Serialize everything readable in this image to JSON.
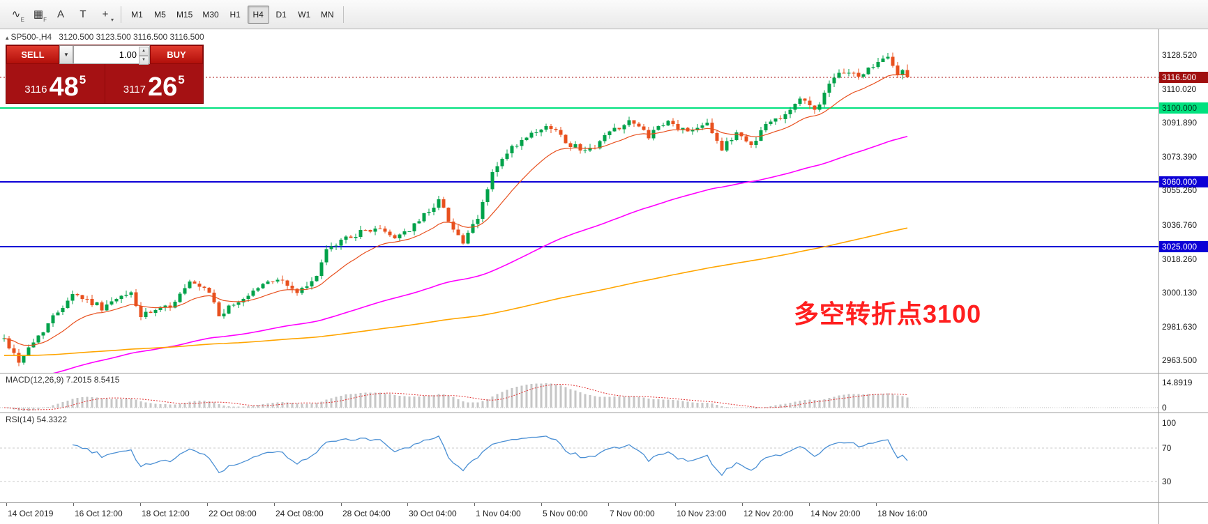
{
  "toolbar": {
    "icons": [
      {
        "name": "indicators-icon",
        "glyph": "∿",
        "sub": "E"
      },
      {
        "name": "grid-icon",
        "glyph": "▦",
        "sub": "F"
      },
      {
        "name": "text-label-icon",
        "glyph": "A",
        "sub": ""
      },
      {
        "name": "text-box-icon",
        "glyph": "T",
        "sub": ""
      },
      {
        "name": "crosshair-icon",
        "glyph": "+",
        "sub": "▾"
      }
    ],
    "timeframes": [
      "M1",
      "M5",
      "M15",
      "M30",
      "H1",
      "H4",
      "D1",
      "W1",
      "MN"
    ],
    "active_timeframe": "H4"
  },
  "chart": {
    "symbol_marker": "▴",
    "symbol_tf": "SP500-,H4",
    "ohlc": "3120.500 3123.500 3116.500 3116.500",
    "annotation": "多空转折点3100",
    "annotation_color": "#ff1f1f"
  },
  "trade_panel": {
    "sell_label": "SELL",
    "buy_label": "BUY",
    "volume": "1.00",
    "bid_prefix": "3116",
    "bid_main": "48",
    "bid_sup": "5",
    "ask_prefix": "3117",
    "ask_main": "26",
    "ask_sup": "5"
  },
  "price_axis": {
    "labels": [
      {
        "text": "3128.520",
        "price": 3128.52,
        "style": "plain"
      },
      {
        "text": "3116.500",
        "price": 3116.5,
        "style": "bid"
      },
      {
        "text": "3110.020",
        "price": 3110.02,
        "style": "plain"
      },
      {
        "text": "3100.000",
        "price": 3100.0,
        "style": "green"
      },
      {
        "text": "3091.890",
        "price": 3091.89,
        "style": "plain"
      },
      {
        "text": "3073.390",
        "price": 3073.39,
        "style": "plain"
      },
      {
        "text": "3060.000",
        "price": 3060.0,
        "style": "blue"
      },
      {
        "text": "3055.260",
        "price": 3055.26,
        "style": "plain"
      },
      {
        "text": "3036.760",
        "price": 3036.76,
        "style": "plain"
      },
      {
        "text": "3025.000",
        "price": 3025.0,
        "style": "blue"
      },
      {
        "text": "3018.260",
        "price": 3018.26,
        "style": "plain"
      },
      {
        "text": "3000.130",
        "price": 3000.13,
        "style": "plain"
      },
      {
        "text": "2981.630",
        "price": 2981.63,
        "style": "plain"
      },
      {
        "text": "2963.500",
        "price": 2963.5,
        "style": "plain"
      }
    ]
  },
  "macd": {
    "label": "MACD(12,26,9) 7.2015 8.5415",
    "axis_labels": [
      {
        "text": "14.8919",
        "value": 14.8919
      },
      {
        "text": "0",
        "value": 0
      }
    ]
  },
  "rsi": {
    "label": "RSI(14) 54.3322",
    "axis_labels": [
      {
        "text": "100",
        "value": 100
      },
      {
        "text": "70",
        "value": 70
      },
      {
        "text": "30",
        "value": 30
      }
    ],
    "levels": [
      70,
      30
    ]
  },
  "time_axis": {
    "labels": [
      "14 Oct 2019",
      "16 Oct 12:00",
      "18 Oct 12:00",
      "22 Oct 08:00",
      "24 Oct 08:00",
      "28 Oct 04:00",
      "30 Oct 04:00",
      "1 Nov 04:00",
      "5 Nov 00:00",
      "7 Nov 00:00",
      "10 Nov 23:00",
      "12 Nov 20:00",
      "14 Nov 20:00",
      "18 Nov 16:00"
    ]
  },
  "chart_data": {
    "type": "candlestick",
    "symbol": "SP500-",
    "timeframe": "H4",
    "price_range": [
      2956.7,
      3142.5
    ],
    "candle_count": 186,
    "render_seed": 42,
    "bull_color": "#00a24a",
    "bear_color": "#e8501e",
    "last_candle": [
      3120.5,
      3123.5,
      3116.5,
      3116.5
    ],
    "trend_waypoints": [
      [
        0,
        2975
      ],
      [
        3,
        2963
      ],
      [
        8,
        2980
      ],
      [
        14,
        3000
      ],
      [
        20,
        2992
      ],
      [
        26,
        3000
      ],
      [
        28,
        2987
      ],
      [
        34,
        2993
      ],
      [
        38,
        3005
      ],
      [
        42,
        3000
      ],
      [
        44,
        2988
      ],
      [
        48,
        2995
      ],
      [
        52,
        3003
      ],
      [
        56,
        3008
      ],
      [
        60,
        3000
      ],
      [
        63,
        3005
      ],
      [
        66,
        3022
      ],
      [
        70,
        3030
      ],
      [
        76,
        3035
      ],
      [
        80,
        3030
      ],
      [
        84,
        3036
      ],
      [
        86,
        3042
      ],
      [
        89,
        3050
      ],
      [
        92,
        3035
      ],
      [
        94,
        3027
      ],
      [
        97,
        3040
      ],
      [
        100,
        3065
      ],
      [
        104,
        3078
      ],
      [
        108,
        3085
      ],
      [
        112,
        3090
      ],
      [
        116,
        3080
      ],
      [
        120,
        3077
      ],
      [
        124,
        3087
      ],
      [
        128,
        3093
      ],
      [
        132,
        3085
      ],
      [
        136,
        3092
      ],
      [
        140,
        3087
      ],
      [
        144,
        3093
      ],
      [
        147,
        3077
      ],
      [
        150,
        3087
      ],
      [
        153,
        3080
      ],
      [
        156,
        3091
      ],
      [
        160,
        3097
      ],
      [
        163,
        3105
      ],
      [
        166,
        3099
      ],
      [
        169,
        3112
      ],
      [
        172,
        3120
      ],
      [
        175,
        3117
      ],
      [
        178,
        3123
      ],
      [
        181,
        3127
      ],
      [
        183,
        3118
      ],
      [
        185,
        3116.5
      ]
    ],
    "moving_averages": [
      {
        "name": "fast-ma",
        "period": 16,
        "seed": null,
        "color": "#e8501e",
        "width": 1.2
      },
      {
        "name": "medium-ma",
        "period": 99,
        "seed": 2952,
        "color": "#ff00ff",
        "width": 1.6
      },
      {
        "name": "slow-ma",
        "period": 302,
        "seed": 2966,
        "color": "#ffa500",
        "width": 1.6
      }
    ],
    "hlines": [
      {
        "price": 3116.5,
        "color": "#aa1111",
        "width": 1,
        "style": "dotted"
      },
      {
        "price": 3100.0,
        "color": "#00e17e",
        "width": 2,
        "style": "solid"
      },
      {
        "price": 3060.0,
        "color": "#0d00d6",
        "width": 2,
        "style": "solid"
      },
      {
        "price": 3025.0,
        "color": "#0d00d6",
        "width": 2,
        "style": "solid"
      }
    ],
    "macd_range": [
      -2.9,
      20.2
    ],
    "macd_colors": {
      "histogram": "#c6c6c6",
      "signal": "#e03030"
    },
    "rsi_color": "#4a8fd4"
  }
}
